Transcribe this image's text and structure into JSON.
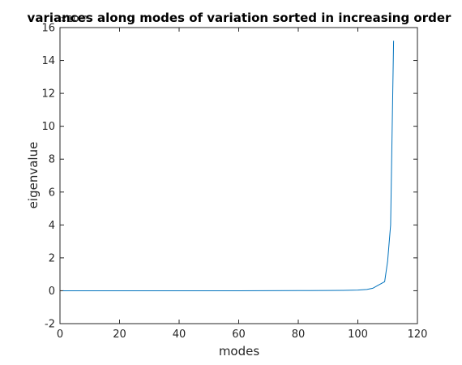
{
  "chart_data": {
    "type": "line",
    "title": "variances along modes of variation sorted in increasing order",
    "xlabel": "modes",
    "ylabel": "eigenvalue",
    "y_exponent_label": "×10⁻³",
    "xlim": [
      0,
      120
    ],
    "ylim": [
      -2,
      16
    ],
    "xticks": [
      0,
      20,
      40,
      60,
      80,
      100,
      120
    ],
    "yticks": [
      -2,
      0,
      2,
      4,
      6,
      8,
      10,
      12,
      14,
      16
    ],
    "grid": false,
    "line_color": "#0072BD",
    "series": [
      {
        "x": [
          1,
          10,
          20,
          30,
          40,
          50,
          60,
          70,
          80,
          90,
          95,
          100,
          103,
          105,
          107,
          109,
          110,
          111,
          112
        ],
        "values": [
          0,
          0,
          0,
          0,
          0,
          0,
          0,
          0.005,
          0.01,
          0.015,
          0.02,
          0.04,
          0.08,
          0.15,
          0.35,
          0.55,
          1.8,
          4.0,
          15.2
        ]
      }
    ]
  }
}
